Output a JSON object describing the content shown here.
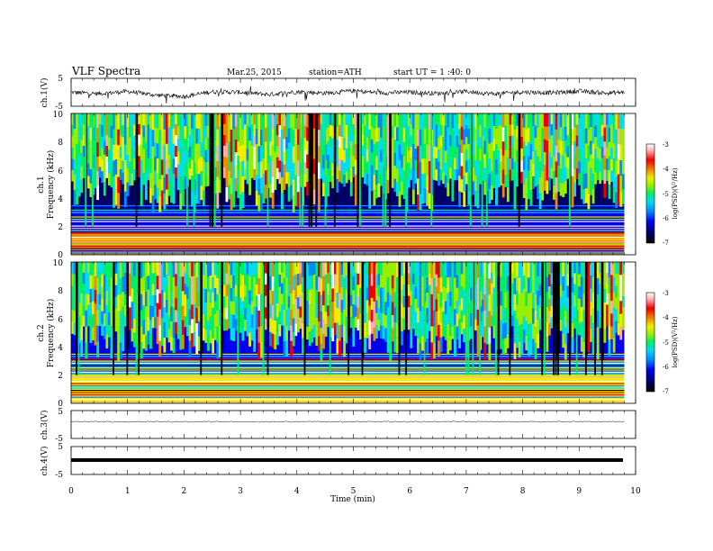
{
  "header": {
    "title": "VLF  Spectra",
    "date": "Mar.25, 2015",
    "station": "station=ATH",
    "start": "start  UT  =   1 :40: 0"
  },
  "colors": {
    "spectrogram_scale": [
      "#000000",
      "#000066",
      "#0000ee",
      "#0088ff",
      "#00ddee",
      "#00ee66",
      "#99ee00",
      "#eeee00",
      "#ee8800",
      "#ee0000",
      "#ffaaaa",
      "#ffffff"
    ],
    "trace": "#000000",
    "axes": "#000000"
  },
  "chart_data": [
    {
      "type": "line",
      "ylabel": "ch.1(V)",
      "ylim": [
        -5,
        5
      ],
      "ytick_labels": [
        "5",
        "-5"
      ],
      "xlim": [
        0,
        10
      ],
      "description_values": "voltage waveform fluctuating roughly between -2 and +1 V with frequent spikes",
      "x": [
        0,
        0.5,
        1,
        1.5,
        2,
        2.5,
        3,
        3.5,
        4,
        4.5,
        5,
        5.5,
        6,
        6.5,
        7,
        7.5,
        8,
        8.5,
        9,
        9.5,
        9.8
      ],
      "y": [
        0,
        -0.5,
        0.3,
        -1.0,
        -1.5,
        0.2,
        0,
        -0.8,
        0.2,
        -0.3,
        0.5,
        -0.2,
        0,
        -0.4,
        0.3,
        -0.6,
        0.1,
        -0.2,
        0.4,
        -0.3,
        0
      ]
    },
    {
      "type": "heatmap",
      "ylabel": "ch.1\nFrequency (kHz)",
      "ylim": [
        0,
        10
      ],
      "ytick_labels": [
        "0",
        "2",
        "4",
        "6",
        "8",
        "10"
      ],
      "xlim": [
        0,
        9.8
      ],
      "colorbar": {
        "label": "log(PSD)(V²/Hz)",
        "range": [
          -7,
          -3
        ],
        "tick_labels": [
          "-3",
          "-4",
          "-5",
          "-6",
          "-7"
        ]
      },
      "bands": [
        {
          "from_khz": 0,
          "to_khz": 1.5,
          "log_psd": -4.0
        },
        {
          "from_khz": 1.5,
          "to_khz": 3.5,
          "log_psd": -6.3
        },
        {
          "from_khz": 3.5,
          "to_khz": 5.5,
          "log_psd": -6.8
        },
        {
          "from_khz": 5.5,
          "to_khz": 10,
          "log_psd": -5.0
        }
      ]
    },
    {
      "type": "heatmap",
      "ylabel": "ch.2\nFrequency (kHz)",
      "ylim": [
        0,
        10
      ],
      "ytick_labels": [
        "0",
        "2",
        "4",
        "6",
        "8",
        "10"
      ],
      "xlim": [
        0,
        9.8
      ],
      "colorbar": {
        "label": "log(PSD)(V²/Hz)",
        "range": [
          -7,
          -3
        ],
        "tick_labels": [
          "-3",
          "-4",
          "-5",
          "-6",
          "-7"
        ]
      },
      "bands": [
        {
          "from_khz": 0,
          "to_khz": 2,
          "log_psd": -4.6
        },
        {
          "from_khz": 2,
          "to_khz": 3,
          "log_psd": -6.0
        },
        {
          "from_khz": 3,
          "to_khz": 6,
          "log_psd": -6.3
        },
        {
          "from_khz": 6,
          "to_khz": 10,
          "log_psd": -5.0
        }
      ]
    },
    {
      "type": "line",
      "ylabel": "ch.3(V)",
      "ylim": [
        -5,
        5
      ],
      "ytick_labels": [
        "5",
        "-5"
      ],
      "xlim": [
        0,
        10
      ],
      "x": [
        0,
        9.8
      ],
      "y": [
        1,
        1
      ]
    },
    {
      "type": "line",
      "ylabel": "ch.4(V)",
      "ylim": [
        -5,
        5
      ],
      "ytick_labels": [
        "5",
        "-5"
      ],
      "xlim": [
        0,
        10
      ],
      "xlabel": "Time  (min)",
      "xtick_labels": [
        "0",
        "1",
        "2",
        "3",
        "4",
        "5",
        "6",
        "7",
        "8",
        "9",
        "10"
      ],
      "x": [
        0,
        9.8
      ],
      "y": [
        0,
        0
      ]
    }
  ]
}
